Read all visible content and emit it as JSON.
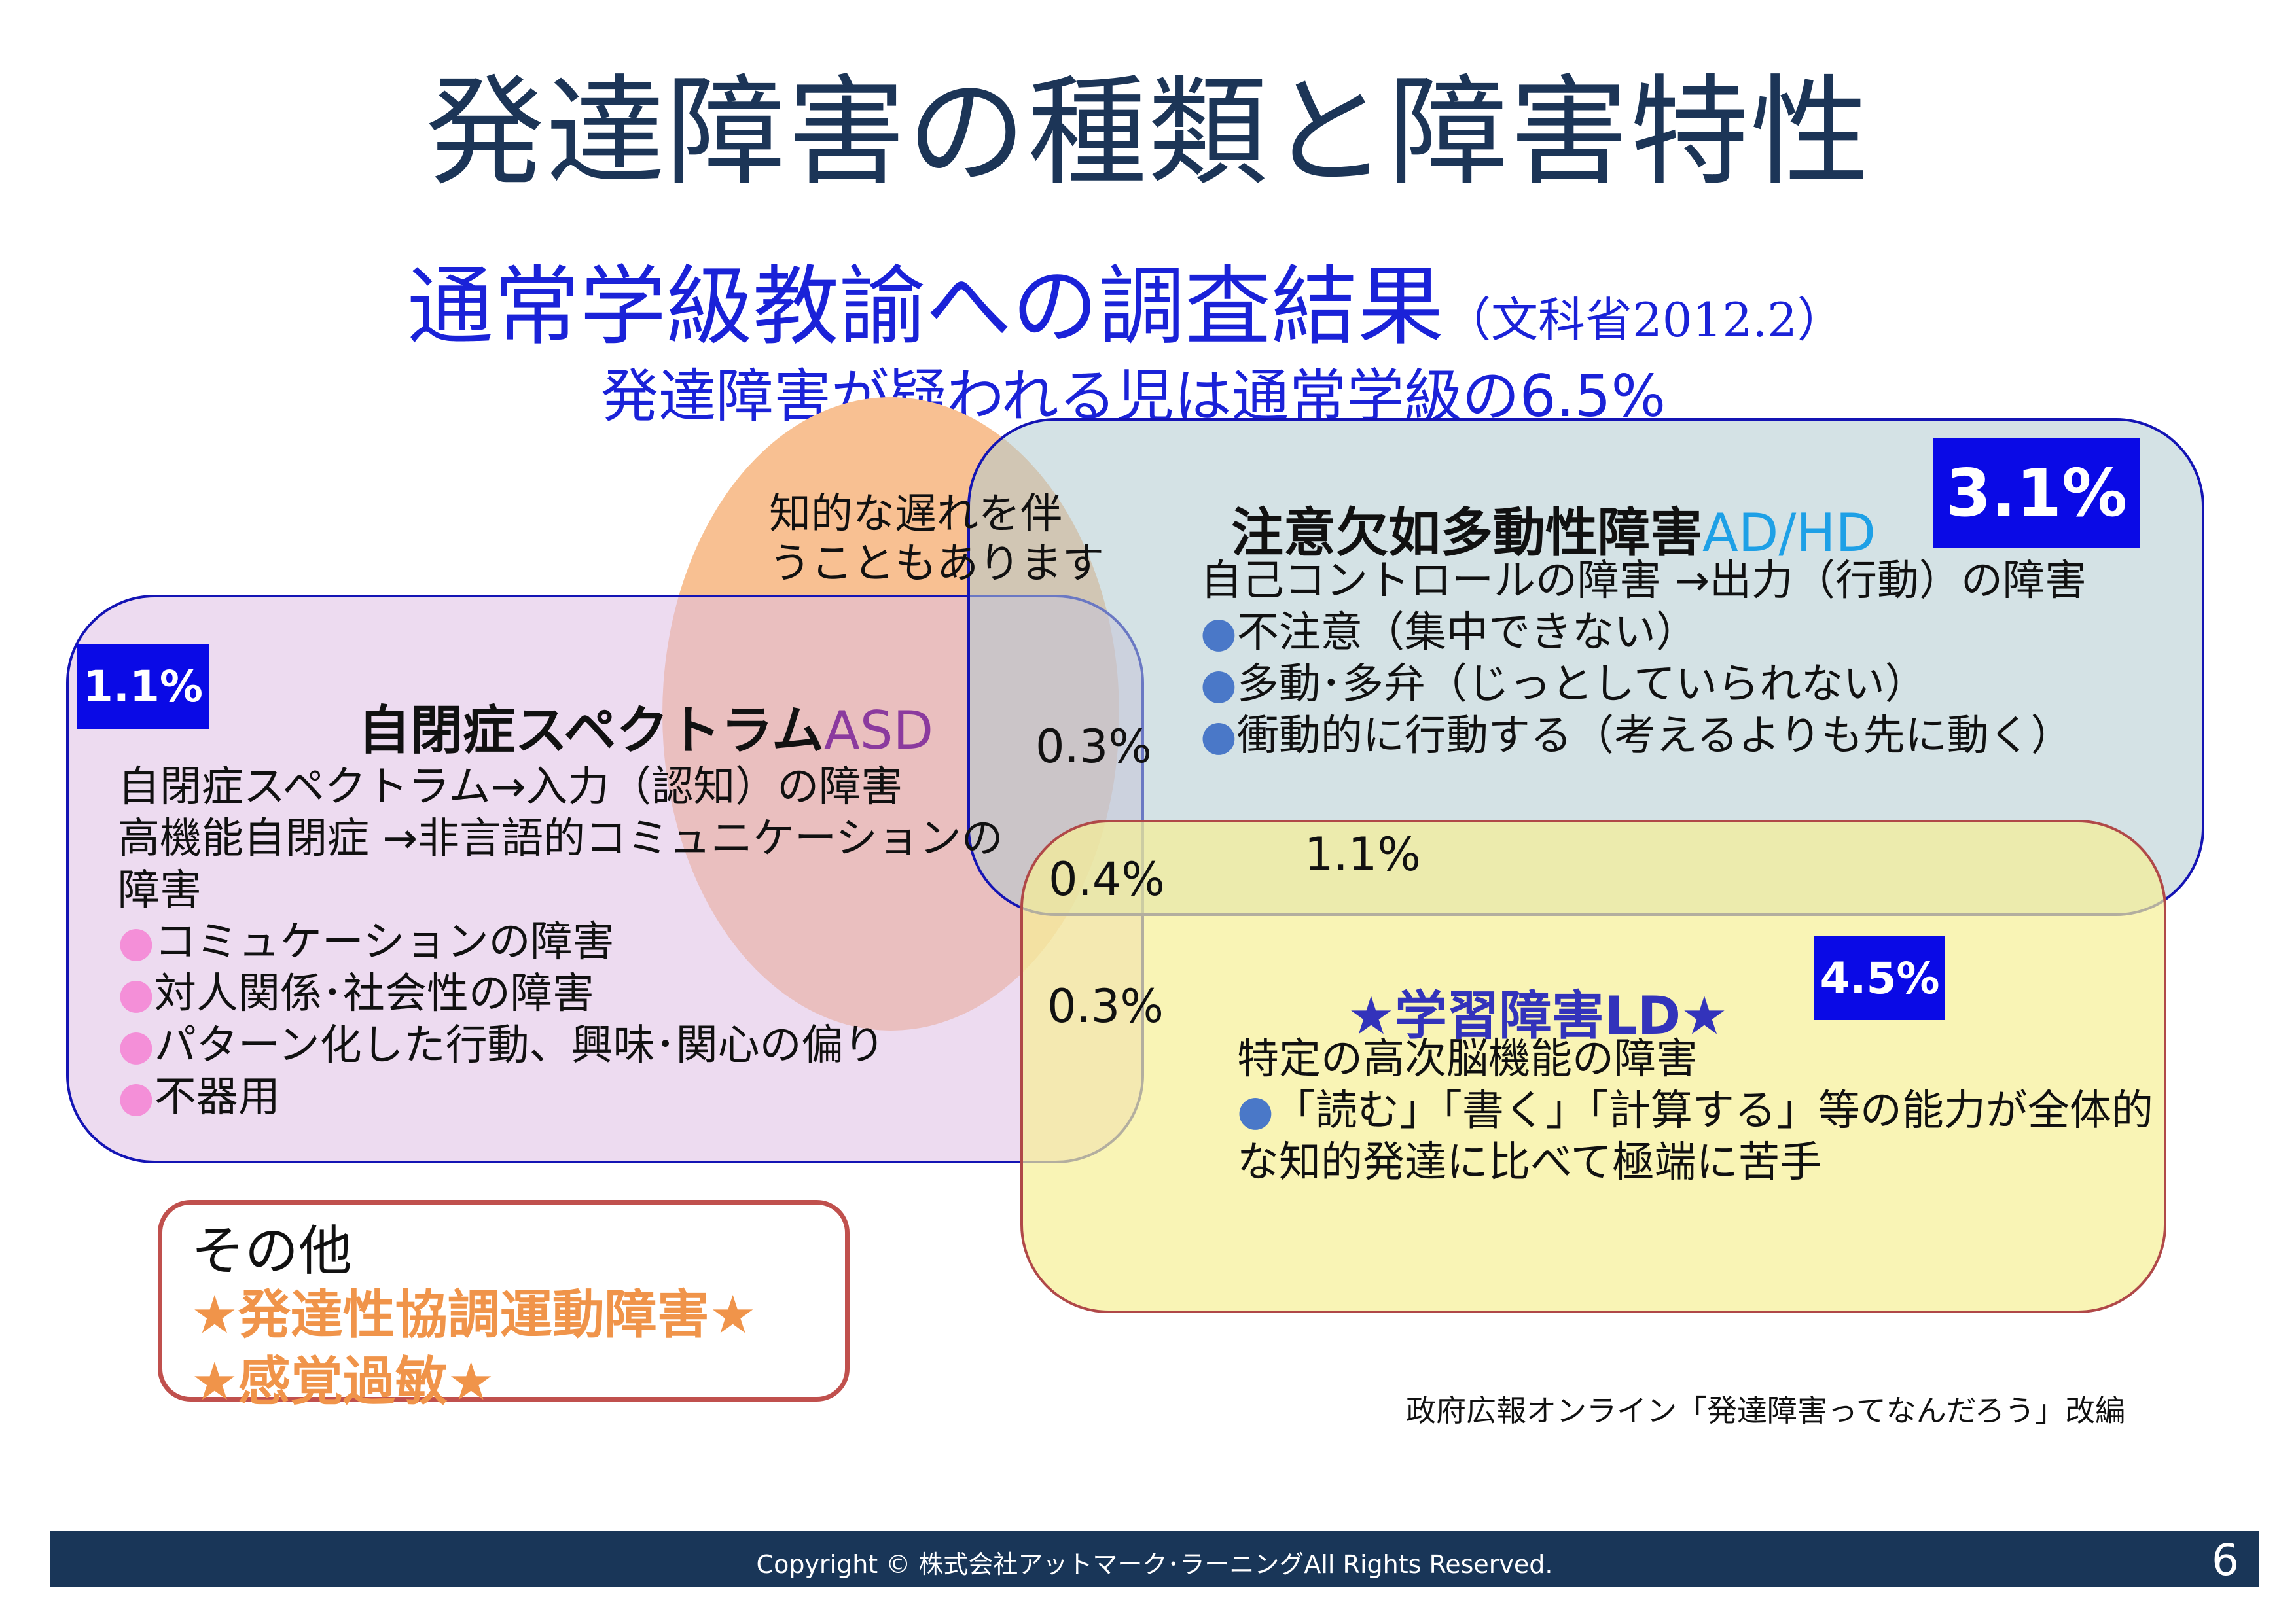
{
  "title": "発達障害の種類と障害特性",
  "survey": {
    "heading": "通常学級教諭への調査結果",
    "source": "（文科省2012.2）",
    "summary": "発達障害が疑われる児は通常学級の6.5%"
  },
  "intellectual_note": [
    "知的な遅れを伴",
    "うこともあります"
  ],
  "asd": {
    "percent": "1.1%",
    "heading": "自閉症スペクトラム",
    "abbr": "ASD",
    "lines": [
      "自閉症スペクトラム→入力（認知）の障害",
      "高機能自閉症 →非言語的コミュニケーションの",
      "障害"
    ],
    "bullets": [
      "コミュケーションの障害",
      "対人関係･社会性の障害",
      "パターン化した行動、興味･関心の偏り",
      "不器用"
    ]
  },
  "adhd": {
    "percent": "3.1%",
    "heading": "注意欠如多動性障害",
    "abbr": "AD/HD",
    "lines": [
      "自己コントロールの障害 →出力（行動）の障害"
    ],
    "bullets": [
      "不注意（集中できない）",
      "多動･多弁（じっとしていられない）",
      "衝動的に行動する（考えるよりも先に動く）"
    ]
  },
  "ld": {
    "percent": "4.5%",
    "heading": "★学習障害LD★",
    "lines": [
      "特定の高次脳機能の障害"
    ],
    "bullets": [
      "「読む」「書く」「計算する」等の能力が全体的",
      "な知的発達に比べて極端に苦手"
    ]
  },
  "overlaps": {
    "asd_adhd": "0.3%",
    "all_three": "0.4%",
    "asd_ld": "0.3%",
    "adhd_ld": "1.1%"
  },
  "other": {
    "heading": "その他",
    "items": [
      "★発達性協調運動障害★",
      "★感覚過敏★"
    ]
  },
  "bullet_glyph": "●",
  "credit": "政府広報オンライン「発達障害ってなんだろう」改編",
  "footer": {
    "copyright": "Copyright © 株式会社アットマーク･ラーニングAll Rights Reserved.",
    "page": "6"
  },
  "colors": {
    "title": "#1c3557",
    "accent_blue": "#1a22d8",
    "badge": "#0a0ae6",
    "asd_abbr": "#8b3a9e",
    "adhd_abbr": "#1ea0e6",
    "other_orange": "#f0944a",
    "footer": "#193658"
  }
}
